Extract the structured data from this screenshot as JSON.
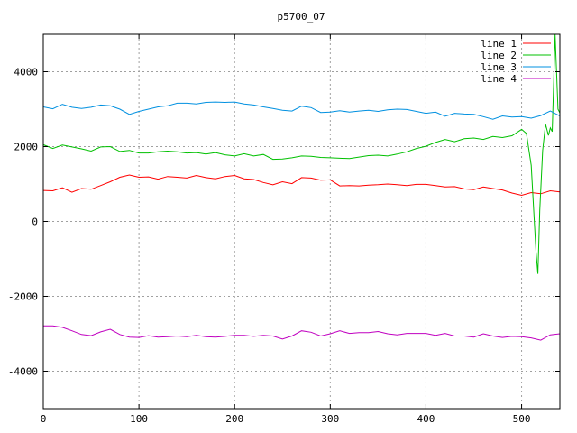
{
  "chart_data": {
    "type": "line",
    "title": "p5700_07",
    "xlim": [
      0,
      540
    ],
    "ylim": [
      -5000,
      5000
    ],
    "xticks": [
      0,
      100,
      200,
      300,
      400,
      500
    ],
    "yticks": [
      -4000,
      -2000,
      0,
      2000,
      4000
    ],
    "grid": true,
    "legend_position": "top-right",
    "series": [
      {
        "name": "line 1",
        "color": "#ff0000",
        "x": [
          0,
          10,
          20,
          30,
          40,
          50,
          60,
          70,
          80,
          90,
          100,
          110,
          120,
          130,
          140,
          150,
          160,
          170,
          180,
          190,
          200,
          210,
          220,
          230,
          240,
          250,
          260,
          270,
          280,
          290,
          300,
          310,
          320,
          330,
          340,
          350,
          360,
          370,
          380,
          390,
          400,
          410,
          420,
          430,
          440,
          450,
          460,
          470,
          480,
          490,
          500,
          510,
          520,
          530,
          540
        ],
        "y": [
          830,
          820,
          900,
          780,
          880,
          860,
          960,
          1060,
          1180,
          1240,
          1180,
          1190,
          1130,
          1200,
          1180,
          1160,
          1230,
          1170,
          1140,
          1200,
          1230,
          1140,
          1120,
          1040,
          980,
          1060,
          1010,
          1170,
          1160,
          1100,
          1110,
          950,
          960,
          950,
          970,
          980,
          1000,
          980,
          960,
          990,
          990,
          960,
          920,
          930,
          870,
          850,
          920,
          880,
          840,
          760,
          700,
          770,
          740,
          820,
          790
        ]
      },
      {
        "name": "line 2",
        "color": "#00c000",
        "x": [
          0,
          10,
          20,
          30,
          40,
          50,
          60,
          70,
          80,
          90,
          100,
          110,
          120,
          130,
          140,
          150,
          160,
          170,
          180,
          190,
          200,
          210,
          220,
          230,
          240,
          250,
          260,
          270,
          280,
          290,
          300,
          310,
          320,
          330,
          340,
          350,
          360,
          370,
          380,
          390,
          400,
          410,
          420,
          430,
          440,
          450,
          460,
          470,
          480,
          490,
          500,
          505,
          510,
          515,
          517,
          519,
          522,
          525,
          528,
          530,
          532,
          535,
          538,
          540
        ],
        "y": [
          2050,
          1950,
          2040,
          1990,
          1940,
          1880,
          1990,
          2000,
          1870,
          1900,
          1830,
          1830,
          1860,
          1880,
          1860,
          1830,
          1840,
          1800,
          1840,
          1780,
          1750,
          1810,
          1750,
          1790,
          1660,
          1670,
          1700,
          1750,
          1740,
          1710,
          1700,
          1690,
          1680,
          1720,
          1760,
          1770,
          1750,
          1800,
          1860,
          1950,
          2010,
          2110,
          2190,
          2130,
          2210,
          2230,
          2190,
          2270,
          2240,
          2290,
          2460,
          2350,
          1500,
          -800,
          -1400,
          300,
          1900,
          2600,
          2300,
          2500,
          2400,
          5000,
          3000,
          2900
        ]
      },
      {
        "name": "line 3",
        "color": "#0090e0",
        "x": [
          0,
          10,
          20,
          30,
          40,
          50,
          60,
          70,
          80,
          90,
          100,
          110,
          120,
          130,
          140,
          150,
          160,
          170,
          180,
          190,
          200,
          210,
          220,
          230,
          240,
          250,
          260,
          270,
          280,
          290,
          300,
          310,
          320,
          330,
          340,
          350,
          360,
          370,
          380,
          390,
          400,
          410,
          420,
          430,
          440,
          450,
          460,
          470,
          480,
          490,
          500,
          510,
          520,
          530,
          540
        ],
        "y": [
          3060,
          3010,
          3130,
          3050,
          3020,
          3050,
          3110,
          3090,
          3000,
          2860,
          2940,
          3000,
          3060,
          3090,
          3160,
          3160,
          3140,
          3180,
          3190,
          3180,
          3190,
          3140,
          3110,
          3060,
          3020,
          2970,
          2950,
          3080,
          3040,
          2910,
          2920,
          2960,
          2920,
          2950,
          2970,
          2940,
          2980,
          3000,
          2990,
          2940,
          2890,
          2920,
          2810,
          2890,
          2870,
          2860,
          2800,
          2730,
          2820,
          2790,
          2800,
          2760,
          2830,
          2950,
          2820
        ]
      },
      {
        "name": "line 4",
        "color": "#c000c0",
        "x": [
          0,
          10,
          20,
          30,
          40,
          50,
          60,
          70,
          80,
          90,
          100,
          110,
          120,
          130,
          140,
          150,
          160,
          170,
          180,
          190,
          200,
          210,
          220,
          230,
          240,
          250,
          260,
          270,
          280,
          290,
          300,
          310,
          320,
          330,
          340,
          350,
          360,
          370,
          380,
          390,
          400,
          410,
          420,
          430,
          440,
          450,
          460,
          470,
          480,
          490,
          500,
          510,
          520,
          530,
          540
        ],
        "y": [
          -2790,
          -2790,
          -2830,
          -2920,
          -3020,
          -3050,
          -2950,
          -2880,
          -3020,
          -3090,
          -3100,
          -3050,
          -3090,
          -3080,
          -3060,
          -3080,
          -3040,
          -3080,
          -3090,
          -3070,
          -3040,
          -3040,
          -3070,
          -3040,
          -3060,
          -3140,
          -3060,
          -2920,
          -2960,
          -3060,
          -3000,
          -2920,
          -2990,
          -2970,
          -2970,
          -2940,
          -3000,
          -3030,
          -2990,
          -2990,
          -2990,
          -3040,
          -2990,
          -3060,
          -3060,
          -3090,
          -3000,
          -3060,
          -3100,
          -3070,
          -3080,
          -3110,
          -3170,
          -3030,
          -3000
        ]
      }
    ]
  }
}
